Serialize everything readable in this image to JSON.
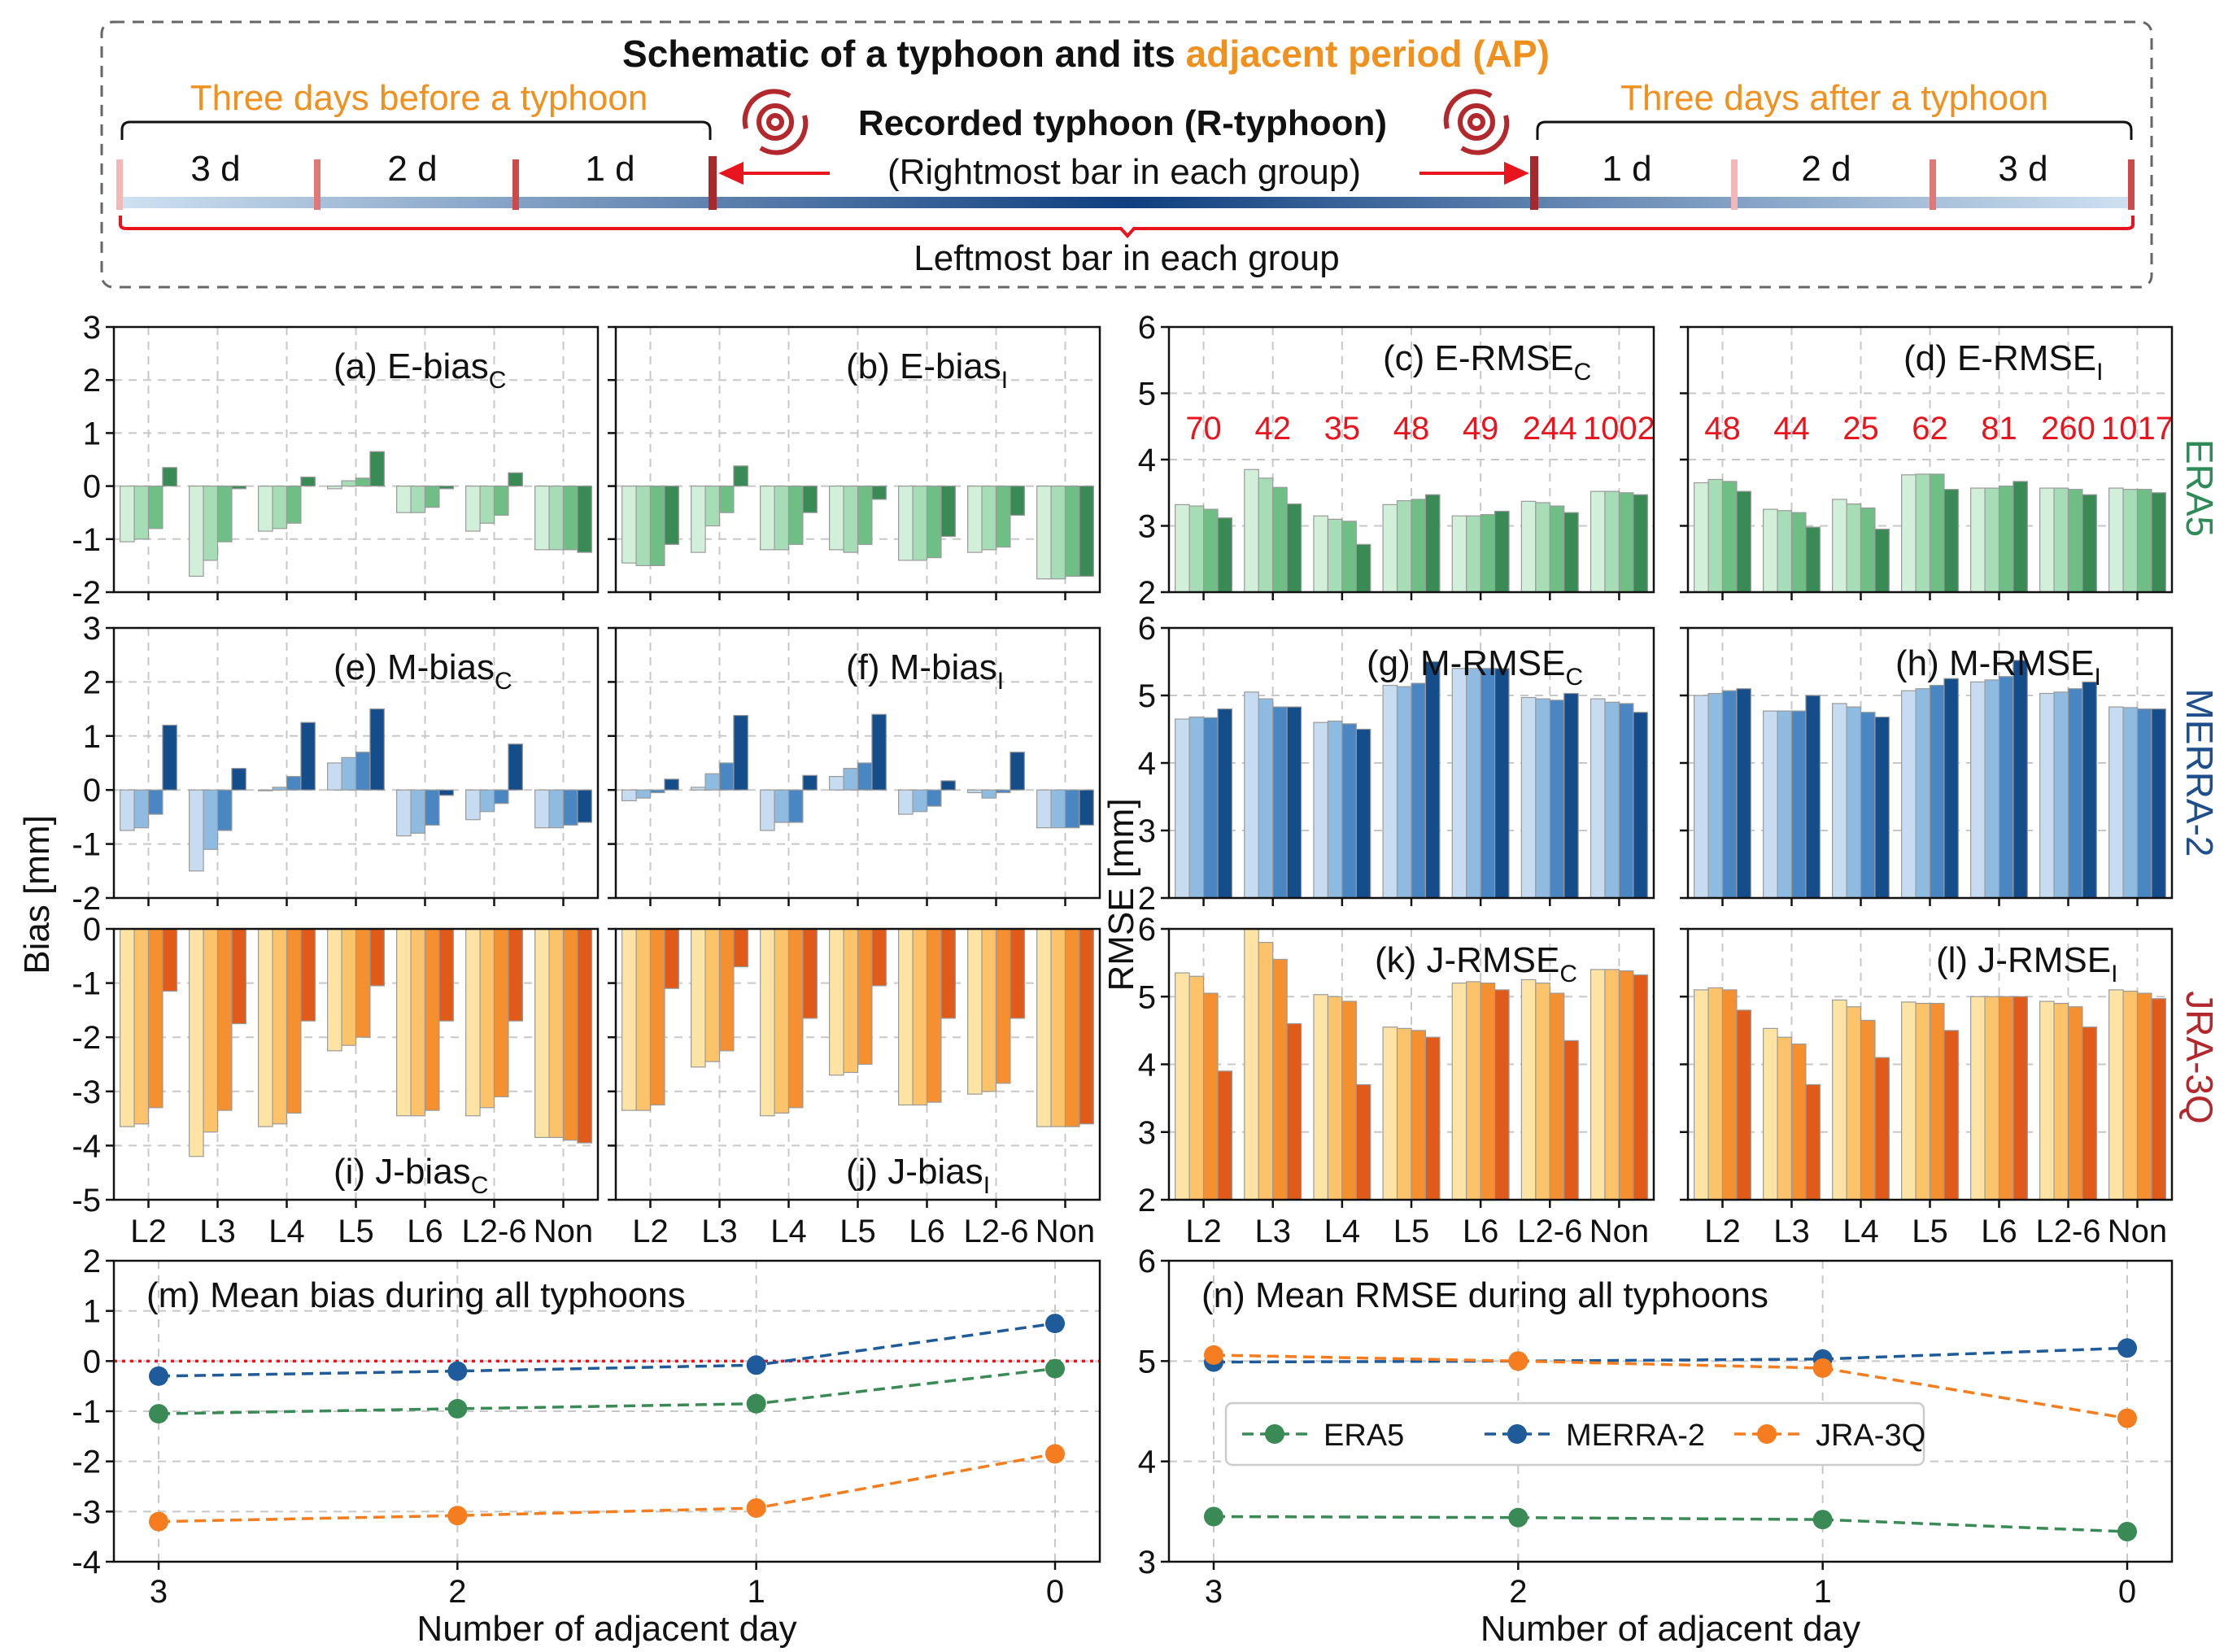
{
  "schematic": {
    "title_prefix": "Schematic of a typhoon and its ",
    "title_highlight": "adjacent period (AP)",
    "before_label": "Three days before a typhoon",
    "after_label": "Three days after a typhoon",
    "typhoon_label": "Recorded typhoon (R-typhoon)",
    "typhoon_sublabel": "(Rightmost bar in each group)",
    "leftmost_label": "Leftmost bar in each group",
    "before_days": [
      "3 d",
      "2 d",
      "1 d"
    ],
    "after_days": [
      "1 d",
      "2 d",
      "3 d"
    ],
    "colors": {
      "orange": "#f0901f",
      "red": "#e8141e",
      "darkred": "#a8292d"
    }
  },
  "row_labels": [
    {
      "text": "ERA5",
      "color": "#2e8b57"
    },
    {
      "text": "MERRA-2",
      "color": "#1f4e8c"
    },
    {
      "text": "JRA-3Q",
      "color": "#b2282d"
    }
  ],
  "shared_labels": {
    "bias_axis": "Bias [mm]",
    "rmse_axis": "RMSE [mm]"
  },
  "palettes": {
    "E": [
      "#d2efd9",
      "#a7ddb6",
      "#6fbe86",
      "#3a8a56"
    ],
    "M": [
      "#c7dcf0",
      "#8fbbe0",
      "#4a86c2",
      "#154c8a"
    ],
    "J": [
      "#fde4a5",
      "#fdc36a",
      "#f59030",
      "#e05a1a"
    ]
  },
  "chart_data": [
    {
      "id": "a",
      "type": "bar",
      "title_main": "(a) E-bias",
      "title_sub": "C",
      "categories": [
        "L2",
        "L3",
        "L4",
        "L5",
        "L6",
        "L2-6",
        "Non"
      ],
      "ylim": [
        -2,
        3
      ],
      "yticks": [
        "-2",
        "-1",
        "0",
        "1",
        "2",
        "3"
      ],
      "show_xticks": false,
      "grid": true,
      "legend": "none",
      "values": [
        [
          -1.05,
          -1.0,
          -0.8,
          0.35
        ],
        [
          -1.7,
          -1.4,
          -1.05,
          -0.05
        ],
        [
          -0.85,
          -0.8,
          -0.7,
          0.17
        ],
        [
          -0.05,
          0.1,
          0.15,
          0.65
        ],
        [
          -0.5,
          -0.5,
          -0.4,
          -0.05
        ],
        [
          -0.85,
          -0.7,
          -0.55,
          0.25
        ],
        [
          -1.2,
          -1.2,
          -1.2,
          -1.25
        ]
      ]
    },
    {
      "id": "b",
      "type": "bar",
      "title_main": "(b) E-bias",
      "title_sub": "I",
      "categories": [
        "L2",
        "L3",
        "L4",
        "L5",
        "L6",
        "L2-6",
        "Non"
      ],
      "ylim": [
        -2,
        3
      ],
      "yticks": [],
      "show_xticks": false,
      "grid": true,
      "legend": "none",
      "values": [
        [
          -1.45,
          -1.5,
          -1.5,
          -1.1
        ],
        [
          -1.25,
          -0.75,
          -0.5,
          0.38
        ],
        [
          -1.2,
          -1.2,
          -1.1,
          -0.5
        ],
        [
          -1.2,
          -1.25,
          -1.1,
          -0.25
        ],
        [
          -1.4,
          -1.4,
          -1.35,
          -0.95
        ],
        [
          -1.25,
          -1.2,
          -1.15,
          -0.55
        ],
        [
          -1.75,
          -1.75,
          -1.7,
          -1.7
        ]
      ]
    },
    {
      "id": "c",
      "type": "bar",
      "title_main": "(c) E-RMSE",
      "title_sub": "C",
      "categories": [
        "L2",
        "L3",
        "L4",
        "L5",
        "L6",
        "L2-6",
        "Non"
      ],
      "ylim": [
        2,
        6
      ],
      "yticks": [
        "2",
        "3",
        "4",
        "5",
        "6"
      ],
      "show_xticks": false,
      "grid": true,
      "legend": "none",
      "counts": [
        "70",
        "42",
        "35",
        "48",
        "49",
        "244",
        "1002"
      ],
      "values": [
        [
          3.32,
          3.3,
          3.25,
          3.12
        ],
        [
          3.85,
          3.72,
          3.58,
          3.33
        ],
        [
          3.15,
          3.1,
          3.07,
          2.72
        ],
        [
          3.32,
          3.38,
          3.4,
          3.47
        ],
        [
          3.15,
          3.15,
          3.17,
          3.22
        ],
        [
          3.37,
          3.35,
          3.3,
          3.2
        ],
        [
          3.52,
          3.52,
          3.5,
          3.47
        ]
      ]
    },
    {
      "id": "d",
      "type": "bar",
      "title_main": "(d) E-RMSE",
      "title_sub": "I",
      "categories": [
        "L2",
        "L3",
        "L4",
        "L5",
        "L6",
        "L2-6",
        "Non"
      ],
      "ylim": [
        2,
        6
      ],
      "yticks": [],
      "show_xticks": false,
      "grid": true,
      "legend": "none",
      "counts": [
        "48",
        "44",
        "25",
        "62",
        "81",
        "260",
        "1017"
      ],
      "values": [
        [
          3.65,
          3.7,
          3.67,
          3.52
        ],
        [
          3.25,
          3.23,
          3.2,
          2.98
        ],
        [
          3.4,
          3.33,
          3.27,
          2.95
        ],
        [
          3.77,
          3.78,
          3.78,
          3.55
        ],
        [
          3.57,
          3.57,
          3.6,
          3.67
        ],
        [
          3.57,
          3.57,
          3.55,
          3.47
        ],
        [
          3.57,
          3.55,
          3.55,
          3.5
        ]
      ]
    },
    {
      "id": "e",
      "type": "bar",
      "title_main": "(e) M-bias",
      "title_sub": "C",
      "categories": [
        "L2",
        "L3",
        "L4",
        "L5",
        "L6",
        "L2-6",
        "Non"
      ],
      "ylim": [
        -2,
        3
      ],
      "yticks": [
        "-2",
        "-1",
        "0",
        "1",
        "2",
        "3"
      ],
      "show_xticks": false,
      "grid": true,
      "legend": "none",
      "values": [
        [
          -0.75,
          -0.7,
          -0.45,
          1.2
        ],
        [
          -1.5,
          -1.1,
          -0.75,
          0.4
        ],
        [
          0.0,
          0.05,
          0.25,
          1.25
        ],
        [
          0.5,
          0.6,
          0.7,
          1.5
        ],
        [
          -0.85,
          -0.8,
          -0.65,
          -0.1
        ],
        [
          -0.55,
          -0.4,
          -0.25,
          0.85
        ],
        [
          -0.7,
          -0.7,
          -0.65,
          -0.6
        ]
      ]
    },
    {
      "id": "f",
      "type": "bar",
      "title_main": "(f) M-bias",
      "title_sub": "I",
      "categories": [
        "L2",
        "L3",
        "L4",
        "L5",
        "L6",
        "L2-6",
        "Non"
      ],
      "ylim": [
        -2,
        3
      ],
      "yticks": [],
      "show_xticks": false,
      "grid": true,
      "legend": "none",
      "values": [
        [
          -0.2,
          -0.15,
          -0.05,
          0.2
        ],
        [
          0.05,
          0.3,
          0.5,
          1.38
        ],
        [
          -0.75,
          -0.6,
          -0.6,
          0.27
        ],
        [
          0.25,
          0.4,
          0.5,
          1.4
        ],
        [
          -0.45,
          -0.4,
          -0.3,
          0.17
        ],
        [
          -0.05,
          -0.15,
          -0.05,
          0.7
        ],
        [
          -0.7,
          -0.7,
          -0.7,
          -0.65
        ]
      ]
    },
    {
      "id": "g",
      "type": "bar",
      "title_main": "(g) M-RMSE",
      "title_sub": "C",
      "categories": [
        "L2",
        "L3",
        "L4",
        "L5",
        "L6",
        "L2-6",
        "Non"
      ],
      "ylim": [
        2,
        6
      ],
      "yticks": [
        "2",
        "3",
        "4",
        "5",
        "6"
      ],
      "show_xticks": false,
      "grid": true,
      "legend": "none",
      "values": [
        [
          4.65,
          4.68,
          4.67,
          4.8
        ],
        [
          5.05,
          4.95,
          4.83,
          4.83
        ],
        [
          4.6,
          4.62,
          4.58,
          4.5
        ],
        [
          5.15,
          5.13,
          5.18,
          5.5
        ],
        [
          5.4,
          5.4,
          5.4,
          5.4
        ],
        [
          4.97,
          4.95,
          4.93,
          5.03
        ],
        [
          4.95,
          4.9,
          4.88,
          4.75
        ]
      ]
    },
    {
      "id": "h",
      "type": "bar",
      "title_main": "(h) M-RMSE",
      "title_sub": "I",
      "categories": [
        "L2",
        "L3",
        "L4",
        "L5",
        "L6",
        "L2-6",
        "Non"
      ],
      "ylim": [
        2,
        6
      ],
      "yticks": [],
      "show_xticks": false,
      "grid": true,
      "legend": "none",
      "values": [
        [
          5.0,
          5.03,
          5.07,
          5.1
        ],
        [
          4.77,
          4.77,
          4.77,
          5.0
        ],
        [
          4.88,
          4.83,
          4.75,
          4.68
        ],
        [
          5.07,
          5.1,
          5.15,
          5.25
        ],
        [
          5.2,
          5.23,
          5.28,
          5.52
        ],
        [
          5.03,
          5.05,
          5.1,
          5.2
        ],
        [
          4.83,
          4.82,
          4.8,
          4.8
        ]
      ]
    },
    {
      "id": "i",
      "type": "bar",
      "title_main": "(i) J-bias",
      "title_sub": "C",
      "categories": [
        "L2",
        "L3",
        "L4",
        "L5",
        "L6",
        "L2-6",
        "Non"
      ],
      "ylim": [
        -5,
        0
      ],
      "yticks": [
        "-5",
        "-4",
        "-3",
        "-2",
        "-1",
        "0"
      ],
      "show_xticks": true,
      "grid": true,
      "legend": "none",
      "values": [
        [
          -3.65,
          -3.6,
          -3.3,
          -1.15
        ],
        [
          -4.2,
          -3.75,
          -3.35,
          -1.75
        ],
        [
          -3.65,
          -3.6,
          -3.4,
          -1.7
        ],
        [
          -2.25,
          -2.15,
          -2.0,
          -1.05
        ],
        [
          -3.45,
          -3.45,
          -3.35,
          -1.7
        ],
        [
          -3.45,
          -3.3,
          -3.1,
          -1.7
        ],
        [
          -3.85,
          -3.85,
          -3.9,
          -3.95
        ]
      ]
    },
    {
      "id": "j",
      "type": "bar",
      "title_main": "(j) J-bias",
      "title_sub": "I",
      "categories": [
        "L2",
        "L3",
        "L4",
        "L5",
        "L6",
        "L2-6",
        "Non"
      ],
      "ylim": [
        -5,
        0
      ],
      "yticks": [],
      "show_xticks": true,
      "grid": true,
      "legend": "none",
      "values": [
        [
          -3.35,
          -3.35,
          -3.25,
          -1.1
        ],
        [
          -2.55,
          -2.45,
          -2.25,
          -0.7
        ],
        [
          -3.45,
          -3.4,
          -3.3,
          -1.65
        ],
        [
          -2.7,
          -2.65,
          -2.5,
          -1.05
        ],
        [
          -3.25,
          -3.25,
          -3.2,
          -1.65
        ],
        [
          -3.05,
          -3.0,
          -2.85,
          -1.65
        ],
        [
          -3.65,
          -3.65,
          -3.65,
          -3.6
        ]
      ]
    },
    {
      "id": "k",
      "type": "bar",
      "title_main": "(k) J-RMSE",
      "title_sub": "C",
      "categories": [
        "L2",
        "L3",
        "L4",
        "L5",
        "L6",
        "L2-6",
        "Non"
      ],
      "ylim": [
        2,
        6
      ],
      "yticks": [
        "2",
        "3",
        "4",
        "5",
        "6"
      ],
      "show_xticks": true,
      "grid": true,
      "legend": "none",
      "values": [
        [
          5.35,
          5.3,
          5.05,
          3.9
        ],
        [
          6.0,
          5.8,
          5.55,
          4.6
        ],
        [
          5.03,
          5.0,
          4.93,
          3.7
        ],
        [
          4.55,
          4.53,
          4.5,
          4.4
        ],
        [
          5.2,
          5.22,
          5.2,
          5.1
        ],
        [
          5.25,
          5.2,
          5.05,
          4.35
        ],
        [
          5.4,
          5.4,
          5.38,
          5.32
        ]
      ]
    },
    {
      "id": "l",
      "type": "bar",
      "title_main": "(l) J-RMSE",
      "title_sub": "I",
      "categories": [
        "L2",
        "L3",
        "L4",
        "L5",
        "L6",
        "L2-6",
        "Non"
      ],
      "ylim": [
        2,
        6
      ],
      "yticks": [],
      "show_xticks": true,
      "grid": true,
      "legend": "none",
      "values": [
        [
          5.1,
          5.13,
          5.1,
          4.8
        ],
        [
          4.53,
          4.4,
          4.3,
          3.7
        ],
        [
          4.95,
          4.85,
          4.65,
          4.1
        ],
        [
          4.92,
          4.9,
          4.9,
          4.5
        ],
        [
          5.0,
          5.0,
          5.0,
          5.0
        ],
        [
          4.93,
          4.9,
          4.85,
          4.55
        ],
        [
          5.1,
          5.08,
          5.05,
          4.97
        ]
      ]
    },
    {
      "id": "m",
      "type": "line",
      "title": "(m) Mean bias during all typhoons",
      "xlabel": "Number of adjacent day",
      "x": [
        3,
        2,
        1,
        0
      ],
      "xticks": [
        "3",
        "2",
        "1",
        "0"
      ],
      "ylim": [
        -4,
        2
      ],
      "yticks": [
        "-4",
        "-3",
        "-2",
        "-1",
        "0",
        "1",
        "2"
      ],
      "grid": true,
      "zero_line": true,
      "legend": "none",
      "series": [
        {
          "name": "ERA5",
          "color": "#3a8a56",
          "values": [
            -1.05,
            -0.95,
            -0.85,
            -0.15
          ]
        },
        {
          "name": "MERRA-2",
          "color": "#1f5a9a",
          "values": [
            -0.3,
            -0.2,
            -0.08,
            0.75
          ]
        },
        {
          "name": "JRA-3Q",
          "color": "#f57c1f",
          "values": [
            -3.2,
            -3.08,
            -2.93,
            -1.85
          ]
        }
      ]
    },
    {
      "id": "n",
      "type": "line",
      "title": "(n) Mean RMSE during all typhoons",
      "xlabel": "Number of adjacent day",
      "x": [
        3,
        2,
        1,
        0
      ],
      "xticks": [
        "3",
        "2",
        "1",
        "0"
      ],
      "ylim": [
        3,
        6
      ],
      "yticks": [
        "3",
        "4",
        "5",
        "6"
      ],
      "grid": true,
      "zero_line": false,
      "legend": "center-left",
      "series": [
        {
          "name": "ERA5",
          "color": "#3a8a56",
          "values": [
            3.45,
            3.44,
            3.42,
            3.3
          ]
        },
        {
          "name": "MERRA-2",
          "color": "#1f5a9a",
          "values": [
            4.99,
            5.0,
            5.02,
            5.13
          ]
        },
        {
          "name": "JRA-3Q",
          "color": "#f57c1f",
          "values": [
            5.06,
            5.0,
            4.93,
            4.43
          ]
        }
      ]
    }
  ]
}
